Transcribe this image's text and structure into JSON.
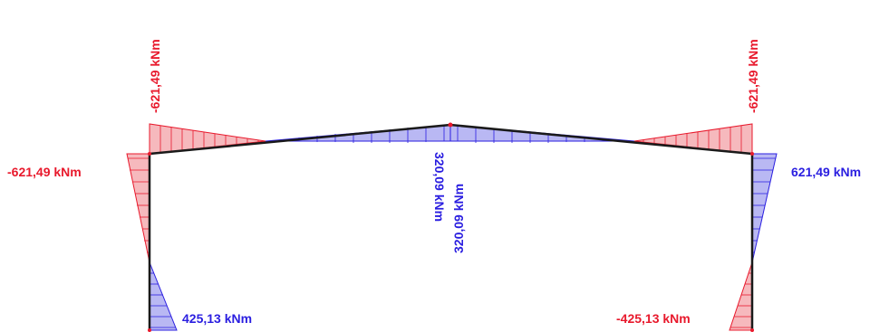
{
  "diagram": {
    "colors": {
      "negative_fill": "#f6b9bd",
      "negative_stroke": "#e8192c",
      "positive_fill": "#b9b8f3",
      "positive_stroke": "#2a1ee0",
      "frame": "#1a1a1a",
      "node": "#e8192c"
    },
    "labels": {
      "left_eave_rafter": "-621,49 kNm",
      "left_eave_column": "-621,49 kNm",
      "right_eave_rafter": "-621,49 kNm",
      "right_eave_column": "621,49 kNm",
      "ridge_left": "320,09 kNm",
      "ridge_right": "320,09 kNm",
      "left_base": "425,13 kNm",
      "right_base": "-425,13 kNm"
    }
  }
}
